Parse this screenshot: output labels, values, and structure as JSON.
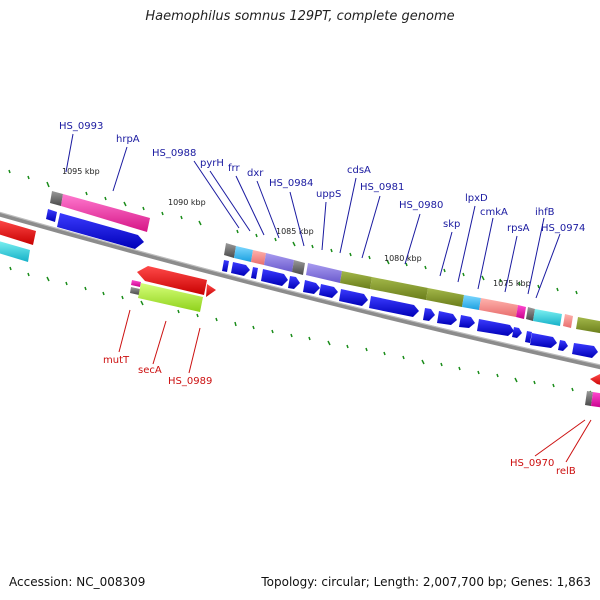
{
  "title": "Haemophilus somnus 129PT, complete genome",
  "accession": "Accession: NC_008309",
  "summary": "Topology: circular; Length: 2,007,700 bp; Genes: 1,863",
  "kbp_labels": [
    "1095 kbp",
    "1090 kbp",
    "1085 kbp",
    "1080 kbp",
    "1075 kbp"
  ],
  "genes_upper": [
    "HS_0993",
    "hrpA",
    "HS_0988",
    "pyrH",
    "frr",
    "dxr",
    "HS_0984",
    "uppS",
    "cdsA",
    "HS_0981",
    "HS_0980",
    "skp",
    "lpxD",
    "cmkA",
    "rpsA",
    "ihfB",
    "HS_0974"
  ],
  "genes_lower": [
    "mutT",
    "secA",
    "HS_0989",
    "HS_0970",
    "relB"
  ],
  "colors": {
    "upper_label": "#1a1aa0",
    "lower_label": "#cc1010",
    "backbone": "#8c8c8c",
    "cds": "#0a0ae6",
    "tick": "#1a8c1a"
  }
}
